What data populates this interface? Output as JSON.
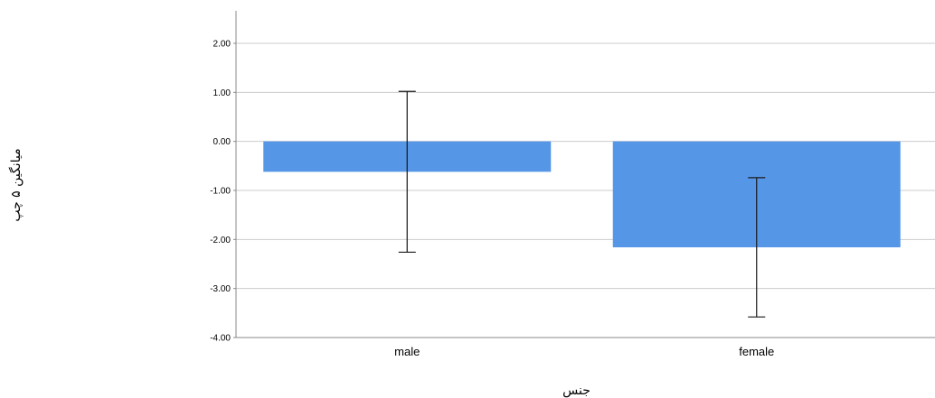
{
  "chart_data": {
    "type": "bar",
    "categories": [
      "male",
      "female"
    ],
    "values": [
      -0.62,
      -2.16
    ],
    "error_bars": [
      {
        "low": -2.26,
        "high": 1.02
      },
      {
        "low": -3.58,
        "high": -0.74
      }
    ],
    "ylim": [
      -4.0,
      2.0
    ],
    "yticks": [
      2.0,
      1.0,
      0.0,
      -1.0,
      -2.0,
      -3.0,
      -4.0
    ],
    "ytick_labels": [
      "2.00",
      "1.00",
      "0.00",
      "-1.00",
      "-2.00",
      "-3.00",
      "-4.00"
    ],
    "xlabel": "جنس",
    "ylabel": "میانگین ۵ چپ",
    "grid": true,
    "colors": {
      "bar": "#5596E6",
      "grid": "#CCCCCC",
      "axis": "#888888",
      "error_bar": "#1a1a1a"
    }
  }
}
